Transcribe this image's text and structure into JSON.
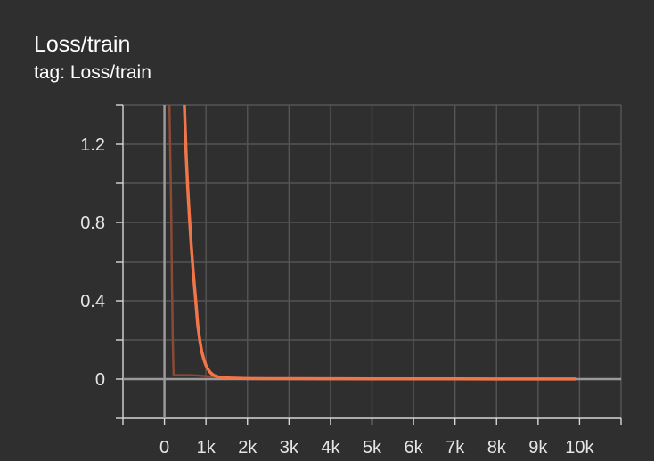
{
  "header": {
    "title": "Loss/train",
    "subtitle": "tag: Loss/train"
  },
  "chart_data": {
    "type": "line",
    "title": "Loss/train",
    "subtitle": "tag: Loss/train",
    "xlabel": "",
    "ylabel": "",
    "xlim": [
      -1000,
      11000
    ],
    "ylim": [
      -0.2,
      1.4
    ],
    "x_ticks": [
      0,
      1000,
      2000,
      3000,
      4000,
      5000,
      6000,
      7000,
      8000,
      9000,
      10000
    ],
    "x_tick_labels": [
      "0",
      "1k",
      "2k",
      "3k",
      "4k",
      "5k",
      "6k",
      "7k",
      "8k",
      "9k",
      "10k"
    ],
    "y_ticks": [
      0,
      0.4,
      0.8,
      1.2
    ],
    "y_tick_labels": [
      "0",
      "0.4",
      "0.8",
      "1.2"
    ],
    "grid": true,
    "colors": {
      "smoothed": "#f0764a",
      "raw": "#8a4a36",
      "background": "#2f2f2f"
    },
    "series": [
      {
        "x": [
          480,
          520,
          560,
          600,
          650,
          700,
          750,
          800,
          850,
          900,
          950,
          1000,
          1050,
          1100,
          1150,
          1200,
          1300,
          1400,
          1500,
          1600,
          1800,
          2000,
          2500,
          3000,
          4000,
          5000,
          6000,
          7000,
          8000,
          9000,
          9900
        ],
        "values": [
          1.4,
          1.16,
          0.98,
          0.83,
          0.67,
          0.53,
          0.41,
          0.28,
          0.2,
          0.14,
          0.1,
          0.07,
          0.05,
          0.035,
          0.025,
          0.018,
          0.011,
          0.008,
          0.006,
          0.005,
          0.004,
          0.003,
          0.0025,
          0.002,
          0.0015,
          0.0012,
          0.001,
          0.001,
          0.0008,
          0.0008,
          0.0007
        ]
      },
      {
        "x": [
          120,
          160,
          180,
          200,
          220,
          300,
          400,
          600,
          800,
          1000,
          1500,
          2000,
          3000
        ],
        "values": [
          1.4,
          0.9,
          0.5,
          0.2,
          0.02,
          0.02,
          0.02,
          0.02,
          0.018,
          0.015,
          0.008,
          0.004,
          0.002
        ]
      }
    ]
  }
}
